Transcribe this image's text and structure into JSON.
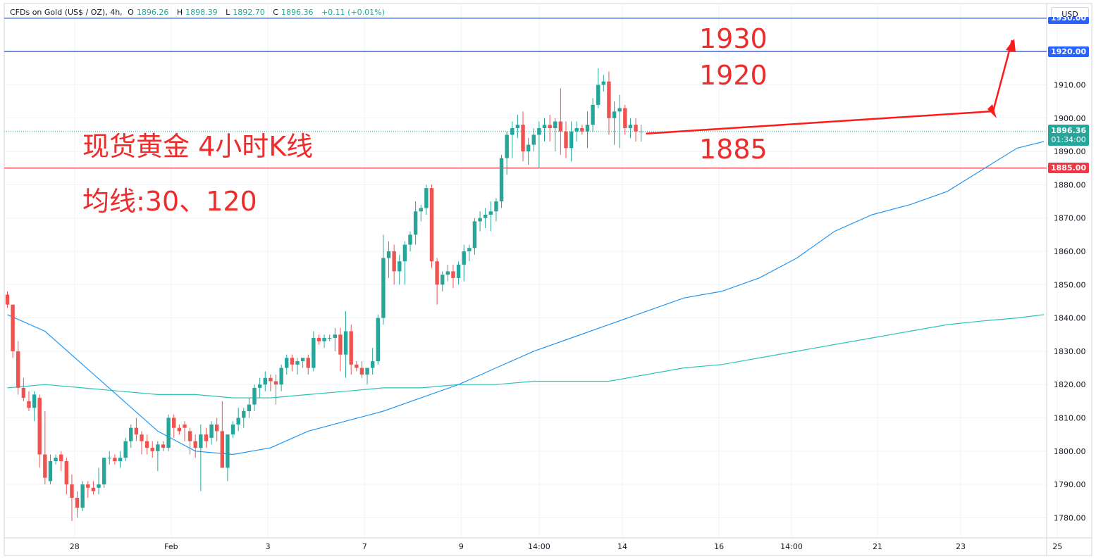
{
  "header": {
    "symbol": "CFDs on Gold (US$ / OZ), 4h,",
    "o_label": "O",
    "o_value": "1896.26",
    "h_label": "H",
    "h_value": "1898.39",
    "l_label": "L",
    "l_value": "1892.70",
    "c_label": "C",
    "c_value": "1896.36",
    "change": "+0.11 (+0.01%)"
  },
  "currency_button": "USD",
  "annotations": {
    "title": "现货黄金 4小时K线",
    "ma_label": "均线:30、120",
    "level_1930": "1930",
    "level_1920": "1920",
    "level_1885": "1885"
  },
  "price_tags": {
    "top_line": "1930.00",
    "line_1920": "1920.00",
    "last_price": "1896.36",
    "countdown": "01:34:00",
    "line_1885": "1885.00"
  },
  "colors": {
    "up": "#26a69a",
    "down": "#ef5350",
    "ma30": "#2196f3",
    "ma120": "#2cc4b6",
    "level_blue": "#2962ff",
    "level_red": "#f23645",
    "annotation_red": "#ee2c2c"
  },
  "chart_data": {
    "type": "candlestick",
    "timeframe": "4h",
    "y_axis_ticks": [
      1780,
      1790,
      1800,
      1810,
      1820,
      1830,
      1840,
      1850,
      1860,
      1870,
      1880,
      1890,
      1900,
      1910
    ],
    "ylim": [
      1775,
      1932
    ],
    "x_axis_labels": [
      {
        "index": 12.5,
        "label": "28"
      },
      {
        "index": 30.5,
        "label": "Feb"
      },
      {
        "index": 48.5,
        "label": "3"
      },
      {
        "index": 66.5,
        "label": "7"
      },
      {
        "index": 84.5,
        "label": "9"
      },
      {
        "index": 99,
        "label": "14:00"
      },
      {
        "index": 114.5,
        "label": "14"
      },
      {
        "index": 132.5,
        "label": "16"
      },
      {
        "index": 146,
        "label": "14:00"
      },
      {
        "index": 162,
        "label": "21"
      },
      {
        "index": 177.5,
        "label": "23"
      },
      {
        "index": 195.5,
        "label": "25"
      }
    ],
    "horizontal_levels": [
      {
        "value": 1930,
        "color": "blue"
      },
      {
        "value": 1920,
        "color": "blue"
      },
      {
        "value": 1885,
        "color": "red"
      }
    ],
    "candles": [
      [
        1847,
        1848,
        1843,
        1844
      ],
      [
        1844,
        1844,
        1828,
        1830
      ],
      [
        1830,
        1833,
        1817,
        1819
      ],
      [
        1819,
        1822,
        1815,
        1816
      ],
      [
        1815,
        1818,
        1812,
        1813
      ],
      [
        1813,
        1818,
        1809,
        1817
      ],
      [
        1816,
        1817,
        1795,
        1799
      ],
      [
        1799,
        1812,
        1790,
        1792
      ],
      [
        1791,
        1799,
        1790,
        1797
      ],
      [
        1797,
        1799,
        1796,
        1798
      ],
      [
        1799,
        1800,
        1794,
        1797
      ],
      [
        1797,
        1798,
        1787,
        1790
      ],
      [
        1790,
        1793,
        1779,
        1786
      ],
      [
        1786,
        1788,
        1780,
        1783
      ],
      [
        1783,
        1791,
        1782,
        1790
      ],
      [
        1790,
        1791,
        1786,
        1789
      ],
      [
        1789,
        1791,
        1787,
        1788
      ],
      [
        1789,
        1795,
        1787,
        1790
      ],
      [
        1790,
        1798,
        1789,
        1798
      ],
      [
        1798,
        1800,
        1796,
        1798
      ],
      [
        1798,
        1799,
        1796,
        1797
      ],
      [
        1797,
        1800,
        1795,
        1798
      ],
      [
        1798,
        1804,
        1797,
        1803
      ],
      [
        1803,
        1808,
        1801,
        1807
      ],
      [
        1807,
        1810,
        1803,
        1805
      ],
      [
        1805,
        1806,
        1799,
        1803
      ],
      [
        1803,
        1805,
        1799,
        1801
      ],
      [
        1801,
        1803,
        1798,
        1800
      ],
      [
        1800,
        1803,
        1794,
        1802
      ],
      [
        1802,
        1803,
        1800,
        1801
      ],
      [
        1801,
        1811,
        1800,
        1810
      ],
      [
        1810,
        1811,
        1804,
        1807
      ],
      [
        1807,
        1808,
        1805,
        1806
      ],
      [
        1808,
        1809,
        1803,
        1807
      ],
      [
        1806,
        1807,
        1799,
        1803
      ],
      [
        1803,
        1805,
        1798,
        1801
      ],
      [
        1801,
        1808,
        1788,
        1805
      ],
      [
        1805,
        1807,
        1801,
        1803
      ],
      [
        1804,
        1809,
        1802,
        1808
      ],
      [
        1808,
        1810,
        1803,
        1806
      ],
      [
        1806,
        1815,
        1795,
        1795
      ],
      [
        1795,
        1805,
        1791,
        1805
      ],
      [
        1805,
        1809,
        1804,
        1808
      ],
      [
        1808,
        1813,
        1806,
        1810
      ],
      [
        1810,
        1813,
        1807,
        1812
      ],
      [
        1812,
        1816,
        1810,
        1814
      ],
      [
        1814,
        1820,
        1812,
        1819
      ],
      [
        1819,
        1822,
        1816,
        1820
      ],
      [
        1820,
        1824,
        1818,
        1822
      ],
      [
        1822,
        1823,
        1818,
        1821
      ],
      [
        1821,
        1823,
        1814,
        1820
      ],
      [
        1820,
        1826,
        1818,
        1825
      ],
      [
        1825,
        1829,
        1823,
        1828
      ],
      [
        1828,
        1829,
        1824,
        1826
      ],
      [
        1826,
        1828,
        1823,
        1827
      ],
      [
        1827,
        1828,
        1825,
        1828
      ],
      [
        1828,
        1829,
        1823,
        1825
      ],
      [
        1825,
        1836,
        1824,
        1834
      ],
      [
        1834,
        1835,
        1832,
        1833
      ],
      [
        1833,
        1835,
        1831,
        1834
      ],
      [
        1834,
        1835,
        1833,
        1834
      ],
      [
        1834,
        1837,
        1830,
        1835
      ],
      [
        1835,
        1837,
        1824,
        1829
      ],
      [
        1829,
        1842,
        1822,
        1836
      ],
      [
        1836,
        1838,
        1823,
        1826
      ],
      [
        1826,
        1827,
        1824,
        1825
      ],
      [
        1825,
        1827,
        1822,
        1823
      ],
      [
        1823,
        1825,
        1820,
        1825
      ],
      [
        1825,
        1831,
        1823,
        1827
      ],
      [
        1827,
        1841,
        1826,
        1840
      ],
      [
        1840,
        1865,
        1838,
        1858
      ],
      [
        1858,
        1863,
        1852,
        1860
      ],
      [
        1860,
        1862,
        1850,
        1854
      ],
      [
        1854,
        1859,
        1850,
        1857
      ],
      [
        1857,
        1863,
        1850,
        1862
      ],
      [
        1862,
        1866,
        1860,
        1865
      ],
      [
        1865,
        1875,
        1862,
        1872
      ],
      [
        1872,
        1874,
        1869,
        1873
      ],
      [
        1873,
        1880,
        1871,
        1879
      ],
      [
        1879,
        1880,
        1855,
        1857
      ],
      [
        1857,
        1858,
        1844,
        1850
      ],
      [
        1850,
        1854,
        1848,
        1853
      ],
      [
        1853,
        1856,
        1851,
        1854
      ],
      [
        1854,
        1856,
        1849,
        1852
      ],
      [
        1852,
        1857,
        1850,
        1856
      ],
      [
        1856,
        1862,
        1851,
        1860
      ],
      [
        1860,
        1862,
        1857,
        1861
      ],
      [
        1861,
        1870,
        1859,
        1869
      ],
      [
        1869,
        1872,
        1866,
        1870
      ],
      [
        1870,
        1873,
        1867,
        1871
      ],
      [
        1871,
        1875,
        1866,
        1872
      ],
      [
        1872,
        1876,
        1869,
        1875
      ],
      [
        1875,
        1889,
        1873,
        1888
      ],
      [
        1888,
        1896,
        1883,
        1895
      ],
      [
        1895,
        1899,
        1888,
        1897
      ],
      [
        1897,
        1901,
        1894,
        1898
      ],
      [
        1898,
        1902,
        1887,
        1890
      ],
      [
        1890,
        1894,
        1886,
        1892
      ],
      [
        1892,
        1897,
        1890,
        1895
      ],
      [
        1895,
        1899,
        1885,
        1897
      ],
      [
        1897,
        1900,
        1893,
        1898
      ],
      [
        1898,
        1901,
        1893,
        1897
      ],
      [
        1897,
        1900,
        1890,
        1899
      ],
      [
        1899,
        1909,
        1889,
        1896
      ],
      [
        1896,
        1899,
        1888,
        1891
      ],
      [
        1891,
        1899,
        1887,
        1896
      ],
      [
        1896,
        1899,
        1893,
        1897
      ],
      [
        1897,
        1898,
        1895,
        1896
      ],
      [
        1896,
        1902,
        1891,
        1898
      ],
      [
        1898,
        1906,
        1896,
        1904
      ],
      [
        1904,
        1915,
        1903,
        1910
      ],
      [
        1910,
        1913,
        1908,
        1911
      ],
      [
        1911,
        1914,
        1895,
        1900
      ],
      [
        1900,
        1905,
        1892,
        1902
      ],
      [
        1902,
        1907,
        1891,
        1903
      ],
      [
        1903,
        1904,
        1895,
        1897
      ],
      [
        1897,
        1900,
        1894,
        1898
      ],
      [
        1898,
        1900,
        1893,
        1896
      ],
      [
        1896,
        1898,
        1893,
        1896
      ]
    ],
    "ma30": [
      [
        0,
        1841
      ],
      [
        7,
        1836
      ],
      [
        14,
        1826
      ],
      [
        21,
        1816
      ],
      [
        28,
        1806
      ],
      [
        35,
        1800
      ],
      [
        42,
        1799
      ],
      [
        49,
        1801
      ],
      [
        56,
        1806
      ],
      [
        63,
        1809
      ],
      [
        70,
        1812
      ],
      [
        77,
        1816
      ],
      [
        84,
        1820
      ],
      [
        91,
        1825
      ],
      [
        98,
        1830
      ],
      [
        105,
        1834
      ],
      [
        112,
        1838
      ],
      [
        119,
        1842
      ],
      [
        126,
        1846
      ],
      [
        133,
        1848
      ],
      [
        140,
        1852
      ],
      [
        147,
        1858
      ],
      [
        154,
        1866
      ],
      [
        161,
        1871
      ],
      [
        168,
        1874
      ],
      [
        175,
        1878
      ],
      [
        181,
        1884
      ],
      [
        188,
        1891
      ],
      [
        193,
        1893
      ]
    ],
    "ma120": [
      [
        0,
        1819
      ],
      [
        7,
        1820
      ],
      [
        14,
        1819
      ],
      [
        21,
        1818
      ],
      [
        28,
        1817
      ],
      [
        35,
        1817
      ],
      [
        42,
        1816
      ],
      [
        49,
        1816
      ],
      [
        56,
        1817
      ],
      [
        63,
        1818
      ],
      [
        70,
        1819
      ],
      [
        77,
        1819
      ],
      [
        84,
        1820
      ],
      [
        91,
        1820
      ],
      [
        98,
        1821
      ],
      [
        105,
        1821
      ],
      [
        112,
        1821
      ],
      [
        119,
        1823
      ],
      [
        126,
        1825
      ],
      [
        133,
        1826
      ],
      [
        140,
        1828
      ],
      [
        147,
        1830
      ],
      [
        154,
        1832
      ],
      [
        161,
        1834
      ],
      [
        168,
        1836
      ],
      [
        175,
        1838
      ],
      [
        181,
        1839
      ],
      [
        188,
        1840
      ],
      [
        193,
        1841
      ]
    ]
  }
}
